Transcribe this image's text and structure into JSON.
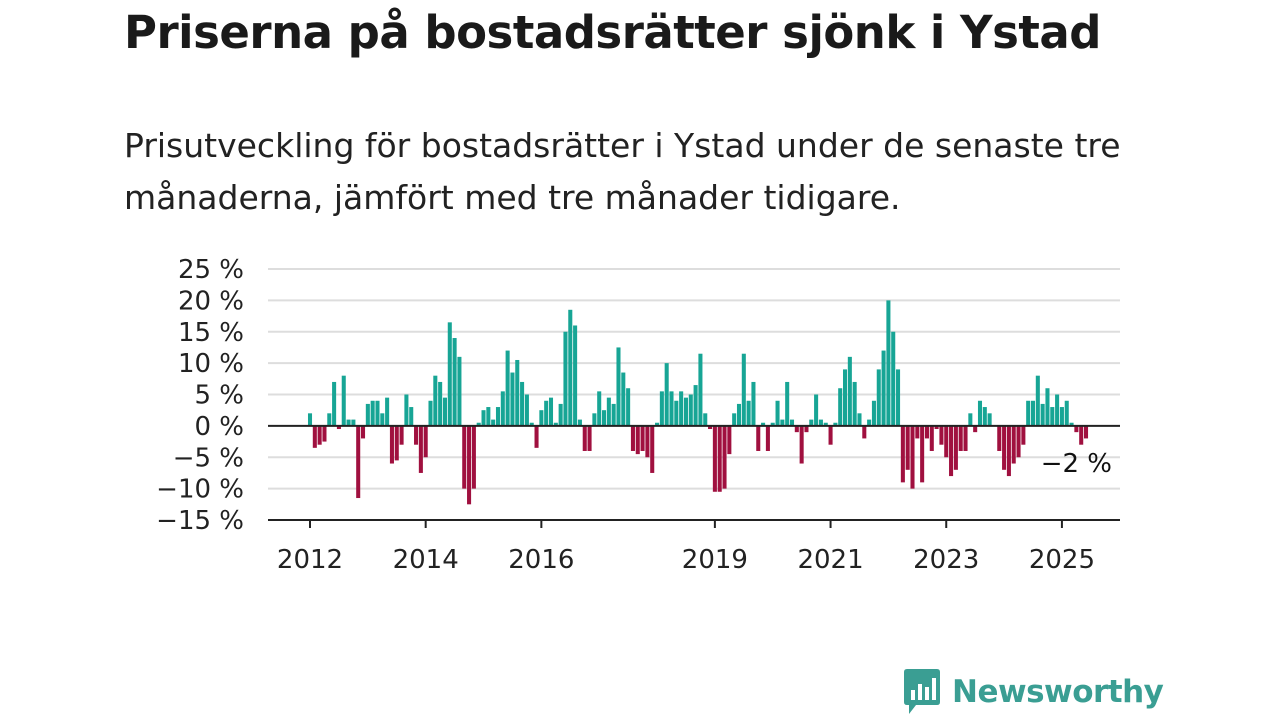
{
  "header": {
    "title": "Priserna på bostadsrätter sjönk i Ystad",
    "subtitle": "Prisutveckling för bostadsrätter i Ystad under de senaste tre månaderna, jämfört med tre månader tidigare."
  },
  "brand": {
    "name": "Newsworthy",
    "color": "#3a9e93"
  },
  "colors": {
    "positive": "#17a595",
    "negative": "#a0103f",
    "grid": "#dddddd",
    "axis": "#222222"
  },
  "chart_data": {
    "type": "bar",
    "ylim": [
      -15,
      25
    ],
    "yticks": [
      25,
      20,
      15,
      10,
      5,
      0,
      -5,
      -10,
      -15
    ],
    "ytick_labels": [
      "25 %",
      "20 %",
      "15 %",
      "10 %",
      "5 %",
      "0 %",
      "−5 %",
      "−10 %",
      "−15 %"
    ],
    "xticks": [
      "2012",
      "2014",
      "2016",
      "2019",
      "2021",
      "2023",
      "2025"
    ],
    "x_start": "2012-01",
    "grid": true,
    "annotation": "−2 %",
    "series": [
      {
        "values": [
          2,
          -3.5,
          -3,
          -2.5,
          2,
          7,
          -0.5,
          8,
          1,
          1,
          -11.5,
          -2,
          3.5,
          4,
          4,
          2,
          4.5,
          -6,
          -5.5,
          -3,
          5,
          3,
          -3,
          -7.5,
          -5,
          4,
          8,
          7,
          4.5,
          16.5,
          14,
          11,
          -10,
          -12.5,
          -10,
          0.5,
          2.5,
          3,
          1,
          3,
          5.5,
          12,
          8.5,
          10.5,
          7,
          5,
          0.5,
          -3.5,
          2.5,
          4,
          4.5,
          0.5,
          3.5,
          15,
          18.5,
          16,
          1,
          -4,
          -4,
          2,
          5.5,
          2.5,
          4.5,
          3.5,
          12.5,
          8.5,
          6,
          -4,
          -4.5,
          -4,
          -5,
          -7.5,
          0.5,
          5.5,
          10,
          5.5,
          4,
          5.5,
          4.5,
          5,
          6.5,
          11.5,
          2,
          -0.5,
          -10.5,
          -10.5,
          -10,
          -4.5,
          2,
          3.5,
          11.5,
          4,
          7,
          -4,
          0.5,
          -4,
          0.5,
          4,
          1,
          7,
          1,
          -1,
          -6,
          -1,
          1,
          5,
          1,
          0.5,
          -3,
          0.5,
          6,
          9,
          11,
          7,
          2,
          -2,
          1,
          4,
          9,
          12,
          20,
          15,
          9,
          -9,
          -7,
          -10,
          -2,
          -9,
          -2,
          -4,
          -0.5,
          -3,
          -5,
          -8,
          -7,
          -4,
          -4,
          2,
          -1,
          4,
          3,
          2,
          0,
          -4,
          -7,
          -8,
          -6,
          -5,
          -3,
          4,
          4,
          8,
          3.5,
          6,
          3,
          5,
          3,
          4,
          0.5,
          -1,
          -3,
          -2
        ]
      }
    ]
  }
}
